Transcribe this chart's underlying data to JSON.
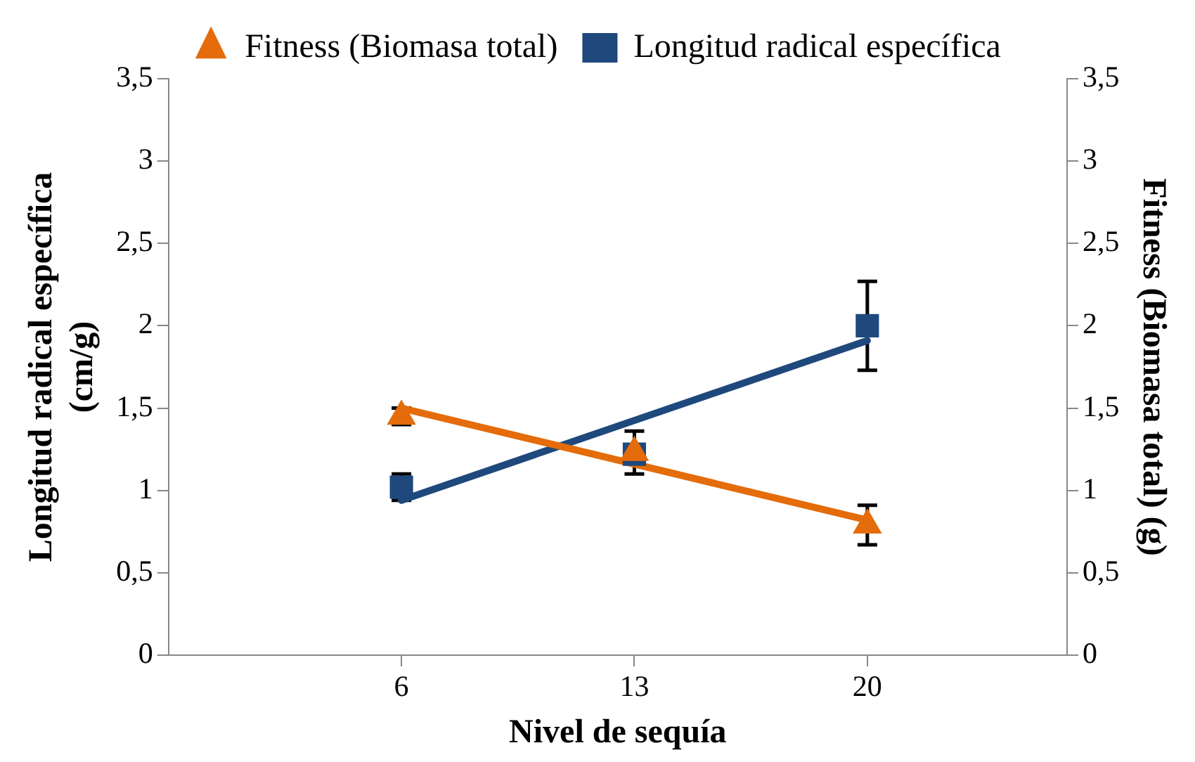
{
  "chart_data": {
    "type": "scatter",
    "xlabel": "Nivel de sequía",
    "ylabel": "Longitud radical específica (cm/g)",
    "y2label": "Fitness (Biomasa total) (g)",
    "xlim": [
      -1,
      26
    ],
    "xticks": [
      6,
      13,
      20
    ],
    "ylim": [
      0,
      3.5
    ],
    "yticks": [
      {
        "value": 0,
        "label": "0"
      },
      {
        "value": 0.5,
        "label": "0,5"
      },
      {
        "value": 1,
        "label": "1"
      },
      {
        "value": 1.5,
        "label": "1,5"
      },
      {
        "value": 2,
        "label": "2"
      },
      {
        "value": 2.5,
        "label": "2,5"
      },
      {
        "value": 3,
        "label": "3"
      },
      {
        "value": 3.5,
        "label": "3,5"
      }
    ],
    "y2lim": [
      0,
      3.5
    ],
    "y2ticks": [
      {
        "value": 0,
        "label": "0"
      },
      {
        "value": 0.5,
        "label": "0,5"
      },
      {
        "value": 1,
        "label": "1"
      },
      {
        "value": 1.5,
        "label": "1,5"
      },
      {
        "value": 2,
        "label": "2"
      },
      {
        "value": 2.5,
        "label": "2,5"
      },
      {
        "value": 3,
        "label": "3"
      },
      {
        "value": 3.5,
        "label": "3,5"
      }
    ],
    "grid": false,
    "legend": "top",
    "series": [
      {
        "type": "line",
        "color": "#1f497d",
        "x": [
          6,
          20
        ],
        "values": [
          0.94,
          1.91
        ],
        "marker": "none"
      },
      {
        "type": "line",
        "color": "#e46c0a",
        "x": [
          6,
          20
        ],
        "values": [
          1.5,
          0.82
        ],
        "marker": "none"
      },
      {
        "name": "Longitud radical específica",
        "color": "#1f497d",
        "x": [
          6,
          13,
          20
        ],
        "values": [
          1.02,
          1.22,
          2.0
        ],
        "errors": [
          0.08,
          null,
          0.27
        ],
        "marker": "square"
      },
      {
        "name": "Fitness (Biomasa total)",
        "color": "#e46c0a",
        "x": [
          6,
          13,
          20
        ],
        "values": [
          1.45,
          1.23,
          0.79
        ],
        "errors": [
          0.05,
          0.13,
          0.12
        ],
        "marker": "triangle"
      }
    ]
  }
}
